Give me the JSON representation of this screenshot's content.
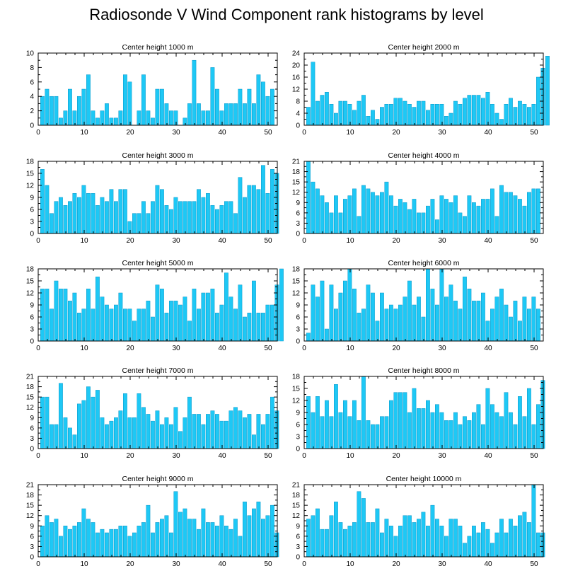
{
  "title": "Radiosonde V Wind Component rank histograms by level",
  "colors": {
    "bar": "#1ec8f5",
    "bar_edge": "#0a96c8",
    "axis": "#000000"
  },
  "chart_data": [
    {
      "type": "bar",
      "title": "Center height 1000 m",
      "xlim": [
        0,
        52
      ],
      "ylim": [
        0,
        10
      ],
      "xticks": [
        0,
        10,
        20,
        30,
        40,
        50
      ],
      "yticks": [
        0,
        2,
        4,
        6,
        8,
        10
      ],
      "values": [
        4,
        5,
        4,
        4,
        1,
        2,
        5,
        2,
        4,
        5,
        7,
        2,
        1,
        2,
        3,
        1,
        1,
        2,
        7,
        6,
        0,
        2,
        7,
        2,
        1,
        5,
        5,
        3,
        2,
        2,
        0,
        1,
        3,
        9,
        3,
        2,
        2,
        8,
        5,
        2,
        3,
        3,
        3,
        5,
        3,
        5,
        3,
        7,
        6,
        4,
        5
      ]
    },
    {
      "type": "bar",
      "title": "Center height 2000 m",
      "xlim": [
        0,
        52
      ],
      "ylim": [
        0,
        24
      ],
      "xticks": [
        0,
        10,
        20,
        30,
        40,
        50
      ],
      "yticks": [
        0,
        4,
        8,
        12,
        16,
        20,
        24
      ],
      "values": [
        6,
        21,
        8,
        10,
        11,
        7,
        4,
        8,
        8,
        7,
        5,
        8,
        10,
        3,
        5,
        2,
        6,
        7,
        7,
        9,
        9,
        8,
        7,
        6,
        8,
        8,
        5,
        7,
        7,
        7,
        3,
        4,
        8,
        7,
        9,
        10,
        10,
        10,
        9,
        11,
        7,
        4,
        2,
        7,
        9,
        6,
        8,
        7,
        6,
        7,
        16,
        19,
        23
      ]
    },
    {
      "type": "bar",
      "title": "Center height 3000 m",
      "xlim": [
        0,
        52
      ],
      "ylim": [
        0,
        18
      ],
      "xticks": [
        0,
        10,
        20,
        30,
        40,
        50
      ],
      "yticks": [
        0,
        3,
        6,
        9,
        12,
        15,
        18
      ],
      "values": [
        16,
        12,
        5,
        8,
        9,
        7,
        8,
        10,
        9,
        12,
        10,
        10,
        7,
        9,
        8,
        11,
        8,
        11,
        11,
        3,
        5,
        5,
        8,
        5,
        8,
        12,
        11,
        7,
        6,
        9,
        8,
        8,
        8,
        8,
        11,
        9,
        10,
        7,
        6,
        7,
        8,
        8,
        5,
        14,
        9,
        12,
        12,
        11,
        17,
        10,
        16,
        15
      ]
    },
    {
      "type": "bar",
      "title": "Center height 4000 m",
      "xlim": [
        0,
        52
      ],
      "ylim": [
        0,
        21
      ],
      "xticks": [
        0,
        10,
        20,
        30,
        40,
        50
      ],
      "yticks": [
        0,
        3,
        6,
        9,
        12,
        15,
        18,
        21
      ],
      "values": [
        21,
        15,
        13,
        11,
        9,
        6,
        11,
        6,
        10,
        11,
        13,
        5,
        14,
        13,
        12,
        11,
        12,
        15,
        11,
        8,
        10,
        9,
        7,
        10,
        6,
        6,
        8,
        10,
        4,
        11,
        10,
        9,
        11,
        6,
        5,
        11,
        9,
        8,
        10,
        10,
        13,
        5,
        14,
        12,
        12,
        11,
        10,
        8,
        12,
        13,
        13
      ]
    },
    {
      "type": "bar",
      "title": "Center height 5000 m",
      "xlim": [
        0,
        52
      ],
      "ylim": [
        0,
        18
      ],
      "xticks": [
        0,
        10,
        20,
        30,
        40,
        50
      ],
      "yticks": [
        0,
        3,
        6,
        9,
        12,
        15,
        18
      ],
      "values": [
        13,
        13,
        8,
        15,
        13,
        13,
        10,
        12,
        7,
        8,
        13,
        8,
        16,
        11,
        9,
        8,
        9,
        12,
        8,
        8,
        5,
        8,
        8,
        10,
        6,
        14,
        13,
        7,
        10,
        10,
        9,
        11,
        5,
        13,
        8,
        12,
        12,
        13,
        7,
        9,
        17,
        11,
        8,
        14,
        6,
        7,
        15,
        7,
        7,
        9,
        9,
        14,
        18
      ]
    },
    {
      "type": "bar",
      "title": "Center height 6000 m",
      "xlim": [
        0,
        52
      ],
      "ylim": [
        0,
        18
      ],
      "xticks": [
        0,
        10,
        20,
        30,
        40,
        50
      ],
      "yticks": [
        0,
        3,
        6,
        9,
        12,
        15,
        18
      ],
      "values": [
        2,
        14,
        11,
        15,
        3,
        14,
        8,
        12,
        15,
        18,
        13,
        7,
        8,
        14,
        12,
        5,
        12,
        8,
        9,
        8,
        9,
        11,
        15,
        9,
        11,
        6,
        18,
        13,
        9,
        18,
        11,
        14,
        10,
        8,
        16,
        13,
        10,
        10,
        12,
        5,
        8,
        11,
        13,
        9,
        6,
        10,
        5,
        11,
        8,
        11,
        8
      ]
    },
    {
      "type": "bar",
      "title": "Center height 7000 m",
      "xlim": [
        0,
        52
      ],
      "ylim": [
        0,
        21
      ],
      "xticks": [
        0,
        10,
        20,
        30,
        40,
        50
      ],
      "yticks": [
        0,
        3,
        6,
        9,
        12,
        15,
        18,
        21
      ],
      "values": [
        15,
        15,
        7,
        7,
        19,
        9,
        6,
        4,
        13,
        14,
        18,
        15,
        17,
        9,
        7,
        8,
        9,
        11,
        16,
        9,
        9,
        16,
        12,
        10,
        8,
        11,
        7,
        9,
        7,
        12,
        5,
        9,
        15,
        10,
        10,
        7,
        10,
        11,
        10,
        8,
        8,
        11,
        12,
        11,
        9,
        10,
        4,
        10,
        7,
        10,
        15,
        11
      ]
    },
    {
      "type": "bar",
      "title": "Center height 8000 m",
      "xlim": [
        0,
        52
      ],
      "ylim": [
        0,
        18
      ],
      "xticks": [
        0,
        10,
        20,
        30,
        40,
        50
      ],
      "yticks": [
        0,
        3,
        6,
        9,
        12,
        15,
        18
      ],
      "values": [
        13,
        9,
        13,
        8,
        12,
        8,
        16,
        9,
        12,
        8,
        12,
        7,
        18,
        7,
        6,
        6,
        8,
        8,
        12,
        14,
        14,
        14,
        9,
        15,
        10,
        10,
        12,
        9,
        11,
        9,
        7,
        7,
        9,
        6,
        8,
        7,
        9,
        11,
        6,
        15,
        11,
        9,
        8,
        14,
        9,
        6,
        13,
        8,
        15,
        6,
        11,
        17
      ]
    },
    {
      "type": "bar",
      "title": "Center height 9000 m",
      "xlim": [
        0,
        52
      ],
      "ylim": [
        0,
        21
      ],
      "xticks": [
        0,
        10,
        20,
        30,
        40,
        50
      ],
      "yticks": [
        0,
        3,
        6,
        9,
        12,
        15,
        18,
        21
      ],
      "values": [
        9,
        12,
        10,
        11,
        6,
        9,
        8,
        9,
        10,
        14,
        11,
        10,
        7,
        8,
        7,
        8,
        8,
        9,
        9,
        6,
        7,
        9,
        10,
        15,
        7,
        10,
        11,
        12,
        7,
        19,
        13,
        14,
        11,
        11,
        8,
        14,
        10,
        10,
        9,
        12,
        9,
        8,
        11,
        6,
        16,
        12,
        14,
        16,
        11,
        12,
        15,
        7
      ]
    },
    {
      "type": "bar",
      "title": "Center height 10000 m",
      "xlim": [
        0,
        52
      ],
      "ylim": [
        0,
        21
      ],
      "xticks": [
        0,
        10,
        20,
        30,
        40,
        50
      ],
      "yticks": [
        0,
        3,
        6,
        9,
        12,
        15,
        18,
        21
      ],
      "values": [
        11,
        12,
        14,
        8,
        8,
        12,
        16,
        10,
        8,
        9,
        10,
        19,
        17,
        10,
        10,
        14,
        7,
        11,
        9,
        6,
        9,
        12,
        12,
        10,
        11,
        13,
        9,
        15,
        11,
        9,
        6,
        11,
        11,
        9,
        4,
        6,
        9,
        7,
        10,
        8,
        4,
        7,
        11,
        7,
        11,
        9,
        12,
        13,
        10,
        21,
        7,
        7
      ]
    }
  ]
}
